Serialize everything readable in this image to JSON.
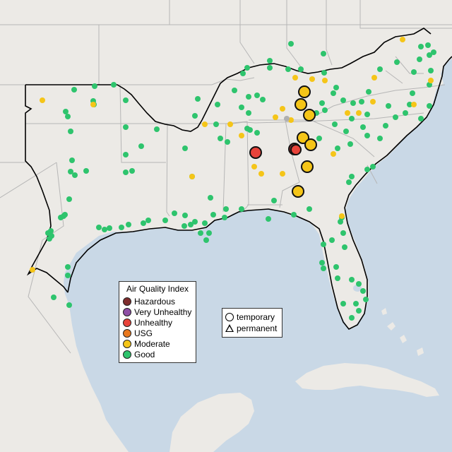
{
  "legend": {
    "aqi": {
      "title": "Air Quality Index",
      "categories": [
        {
          "label": "Hazardous",
          "color": "#7e2d2d"
        },
        {
          "label": "Very Unhealthy",
          "color": "#8e4fa6"
        },
        {
          "label": "Unhealthy",
          "color": "#e8433a"
        },
        {
          "label": "USG",
          "color": "#e8781e"
        },
        {
          "label": "Moderate",
          "color": "#f5c518"
        },
        {
          "label": "Good",
          "color": "#2ec46d"
        }
      ]
    },
    "monitor_type": {
      "items": [
        {
          "label": "temporary",
          "shape": "circle"
        },
        {
          "label": "permanent",
          "shape": "triangle"
        }
      ]
    }
  },
  "colors": {
    "land": "#eceae6",
    "water": "#c9d8e6",
    "state_borders": "#b6b6b6",
    "region_outline": "#000000"
  }
}
